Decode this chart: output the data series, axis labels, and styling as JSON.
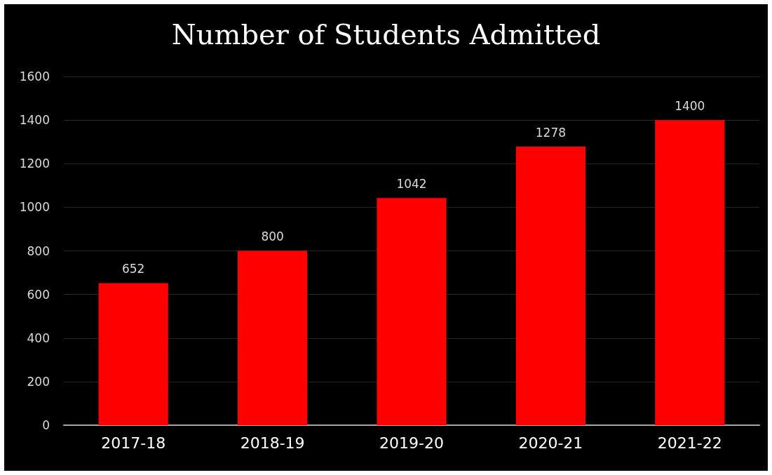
{
  "chart_data": {
    "type": "bar",
    "title": "Number of Students Admitted",
    "categories": [
      "2017-18",
      "2018-19",
      "2019-20",
      "2020-21",
      "2021-22"
    ],
    "values": [
      652,
      800,
      1042,
      1278,
      1400
    ],
    "color": "#ff0000",
    "ylim": [
      0,
      1600
    ],
    "yticks": [
      0,
      200,
      400,
      600,
      800,
      1000,
      1200,
      1400,
      1600
    ],
    "grid": true,
    "data_labels": true
  }
}
